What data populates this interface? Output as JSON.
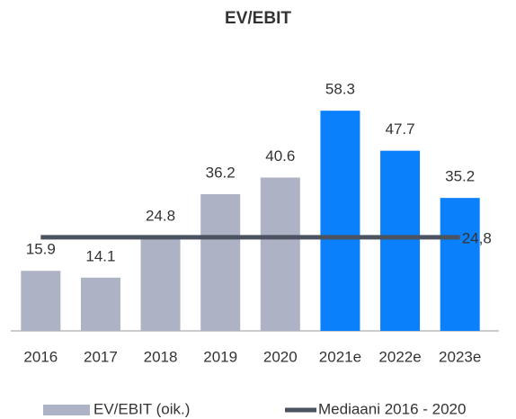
{
  "chart_data": {
    "type": "bar",
    "title": "EV/EBIT",
    "categories": [
      "2016",
      "2017",
      "2018",
      "2019",
      "2020",
      "2021e",
      "2022e",
      "2023e"
    ],
    "series": [
      {
        "name": "EV/EBIT (oik.)",
        "color": "#adb2c5",
        "colors": [
          "#adb2c5",
          "#adb2c5",
          "#adb2c5",
          "#adb2c5",
          "#adb2c5",
          "#0a80fa",
          "#0a80fa",
          "#0a80fa"
        ],
        "values": [
          15.9,
          14.1,
          24.8,
          36.2,
          40.6,
          58.3,
          47.7,
          35.2
        ]
      }
    ],
    "median": {
      "name": "Mediaani 2016 - 2020",
      "color": "#4b5360",
      "value": 24.8,
      "value_label": "24,8"
    },
    "ylim": [
      0,
      60
    ]
  }
}
